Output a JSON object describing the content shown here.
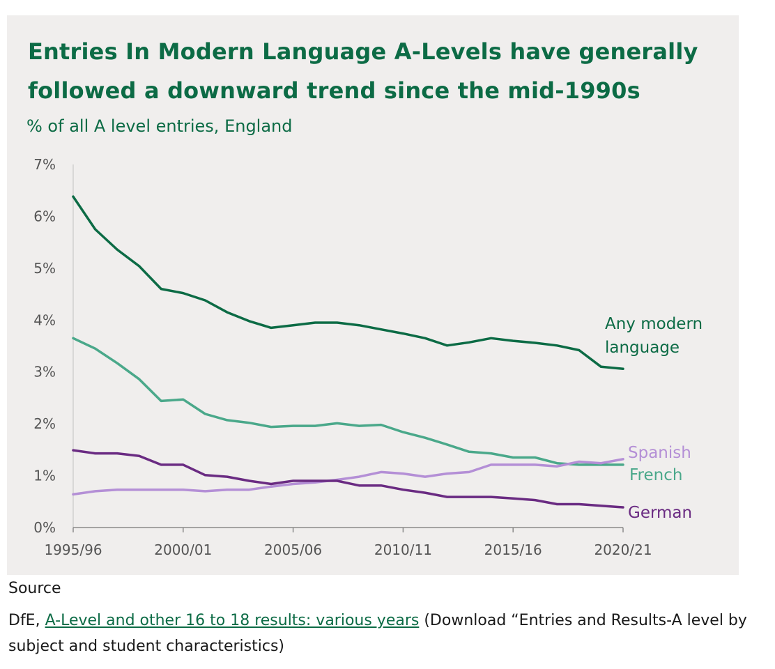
{
  "chart_data": {
    "type": "line",
    "title": "Entries In Modern Language A-Levels have generally followed a downward trend since the mid-1990s",
    "subtitle": "% of all A level entries, England",
    "xlabel": "",
    "ylabel": "",
    "ylim": [
      0,
      7
    ],
    "y_ticks": [
      "0%",
      "1%",
      "2%",
      "3%",
      "4%",
      "5%",
      "6%",
      "7%"
    ],
    "x_tick_labels": [
      "1995/96",
      "2000/01",
      "2005/06",
      "2010/11",
      "2015/16",
      "2020/21"
    ],
    "categories": [
      "1995/96",
      "1996/97",
      "1997/98",
      "1998/99",
      "1999/00",
      "2000/01",
      "2001/02",
      "2002/03",
      "2003/04",
      "2004/05",
      "2005/06",
      "2006/07",
      "2007/08",
      "2008/09",
      "2009/10",
      "2010/11",
      "2011/12",
      "2012/13",
      "2013/14",
      "2014/15",
      "2015/16",
      "2016/17",
      "2017/18",
      "2018/19",
      "2019/20",
      "2020/21"
    ],
    "grid": false,
    "series": [
      {
        "name": "Any modern language",
        "color": "#0c6b45",
        "values": [
          6.38,
          5.75,
          5.36,
          5.04,
          4.6,
          4.52,
          4.38,
          4.15,
          3.98,
          3.85,
          3.9,
          3.95,
          3.95,
          3.9,
          3.82,
          3.74,
          3.65,
          3.51,
          3.57,
          3.65,
          3.6,
          3.56,
          3.51,
          3.42,
          3.1,
          3.06
        ]
      },
      {
        "name": "French",
        "color": "#4aa88a",
        "values": [
          3.65,
          3.45,
          3.17,
          2.86,
          2.44,
          2.47,
          2.19,
          2.07,
          2.02,
          1.94,
          1.96,
          1.96,
          2.01,
          1.96,
          1.98,
          1.84,
          1.73,
          1.6,
          1.46,
          1.43,
          1.35,
          1.35,
          1.24,
          1.21,
          1.21,
          1.21
        ]
      },
      {
        "name": "Spanish",
        "color": "#b48fd6",
        "values": [
          0.64,
          0.7,
          0.73,
          0.73,
          0.73,
          0.73,
          0.7,
          0.73,
          0.73,
          0.79,
          0.84,
          0.87,
          0.92,
          0.98,
          1.07,
          1.04,
          0.98,
          1.04,
          1.07,
          1.21,
          1.21,
          1.21,
          1.18,
          1.27,
          1.24,
          1.32
        ]
      },
      {
        "name": "German",
        "color": "#6a2b82",
        "values": [
          1.49,
          1.43,
          1.43,
          1.38,
          1.21,
          1.21,
          1.01,
          0.98,
          0.9,
          0.84,
          0.9,
          0.9,
          0.9,
          0.81,
          0.81,
          0.73,
          0.67,
          0.59,
          0.59,
          0.59,
          0.56,
          0.53,
          0.45,
          0.45,
          0.42,
          0.39
        ]
      }
    ],
    "series_labels": [
      {
        "series": "Any modern language",
        "lines": [
          "Any modern",
          "language"
        ]
      },
      {
        "series": "Spanish",
        "lines": [
          "Spanish"
        ]
      },
      {
        "series": "French",
        "lines": [
          "French"
        ]
      },
      {
        "series": "German",
        "lines": [
          "German"
        ]
      }
    ]
  },
  "source": {
    "heading": "Source",
    "prefix": "DfE, ",
    "link_text": "A-Level and other 16 to 18 results: various years",
    "suffix": " (Download “Entries and Results-A level by subject and student characteristics)"
  }
}
